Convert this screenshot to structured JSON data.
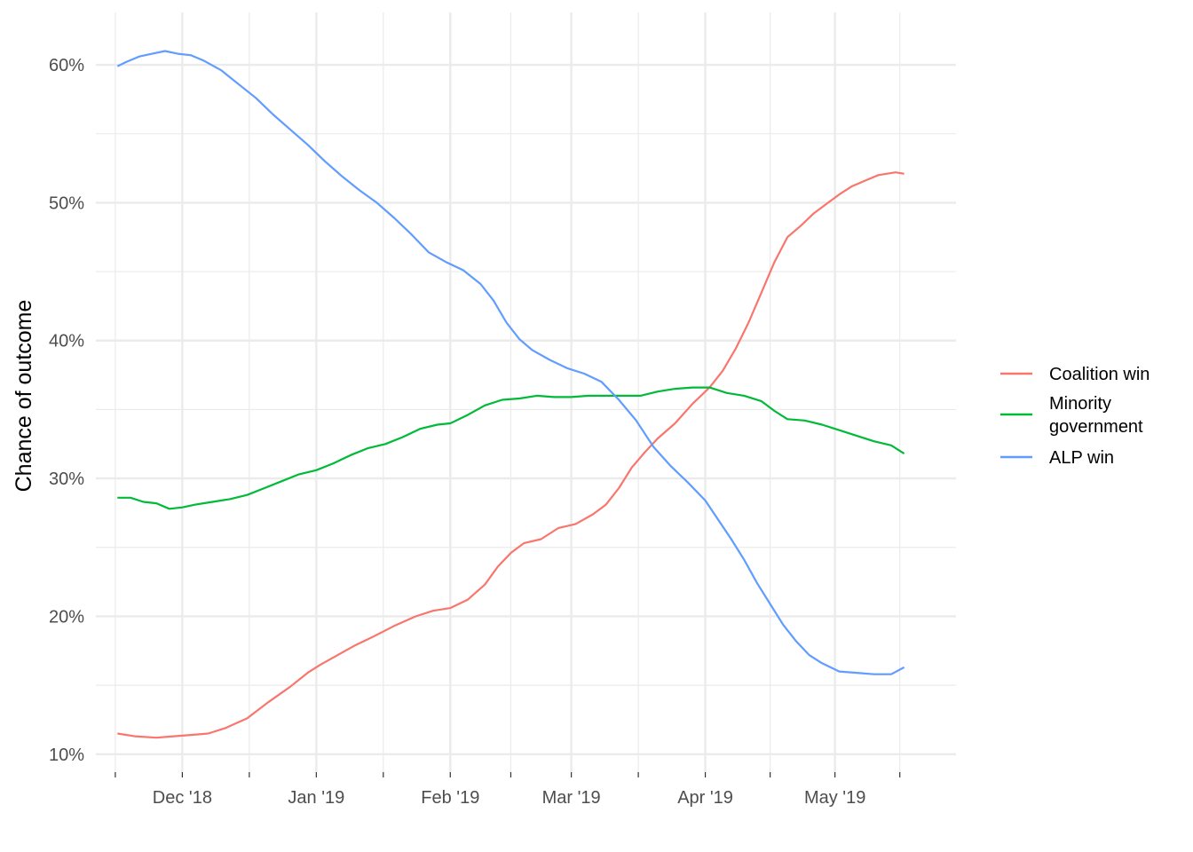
{
  "chart_data": {
    "type": "line",
    "ylabel": "Chance of outcome",
    "xlabel": "",
    "x_ticks": [
      {
        "date": "2018-12-01",
        "label": "Dec '18"
      },
      {
        "date": "2019-01-01",
        "label": "Jan '19"
      },
      {
        "date": "2019-02-01",
        "label": "Feb '19"
      },
      {
        "date": "2019-03-01",
        "label": "Mar '19"
      },
      {
        "date": "2019-04-01",
        "label": "Apr '19"
      },
      {
        "date": "2019-05-01",
        "label": "May '19"
      }
    ],
    "y_ticks": [
      {
        "value": 10,
        "label": "10%"
      },
      {
        "value": 20,
        "label": "20%"
      },
      {
        "value": 30,
        "label": "30%"
      },
      {
        "value": 40,
        "label": "40%"
      },
      {
        "value": 50,
        "label": "50%"
      },
      {
        "value": 60,
        "label": "60%"
      }
    ],
    "xlim": [
      "2018-11-11",
      "2019-05-29"
    ],
    "ylim": [
      8.7,
      63.8
    ],
    "grid": true,
    "legend_position": "right",
    "series": [
      {
        "name": "Coalition win",
        "color": "#F8766D",
        "points": [
          [
            "2018-11-16",
            11.5
          ],
          [
            "2018-11-20",
            11.3
          ],
          [
            "2018-11-25",
            11.2
          ],
          [
            "2018-11-29",
            11.3
          ],
          [
            "2018-12-03",
            11.4
          ],
          [
            "2018-12-07",
            11.5
          ],
          [
            "2018-12-11",
            11.9
          ],
          [
            "2018-12-16",
            12.6
          ],
          [
            "2018-12-21",
            13.8
          ],
          [
            "2018-12-26",
            14.9
          ],
          [
            "2018-12-30",
            15.9
          ],
          [
            "2019-01-02",
            16.5
          ],
          [
            "2019-01-06",
            17.2
          ],
          [
            "2019-01-10",
            17.9
          ],
          [
            "2019-01-14",
            18.5
          ],
          [
            "2019-01-19",
            19.3
          ],
          [
            "2019-01-24",
            20.0
          ],
          [
            "2019-01-28",
            20.4
          ],
          [
            "2019-02-01",
            20.6
          ],
          [
            "2019-02-05",
            21.2
          ],
          [
            "2019-02-09",
            22.3
          ],
          [
            "2019-02-12",
            23.6
          ],
          [
            "2019-02-15",
            24.6
          ],
          [
            "2019-02-18",
            25.3
          ],
          [
            "2019-02-22",
            25.6
          ],
          [
            "2019-02-26",
            26.4
          ],
          [
            "2019-03-02",
            26.7
          ],
          [
            "2019-03-06",
            27.4
          ],
          [
            "2019-03-09",
            28.1
          ],
          [
            "2019-03-12",
            29.3
          ],
          [
            "2019-03-15",
            30.8
          ],
          [
            "2019-03-18",
            31.9
          ],
          [
            "2019-03-21",
            32.9
          ],
          [
            "2019-03-25",
            34.0
          ],
          [
            "2019-03-29",
            35.4
          ],
          [
            "2019-04-02",
            36.6
          ],
          [
            "2019-04-05",
            37.8
          ],
          [
            "2019-04-08",
            39.4
          ],
          [
            "2019-04-11",
            41.3
          ],
          [
            "2019-04-14",
            43.5
          ],
          [
            "2019-04-17",
            45.7
          ],
          [
            "2019-04-20",
            47.5
          ],
          [
            "2019-04-23",
            48.3
          ],
          [
            "2019-04-26",
            49.2
          ],
          [
            "2019-04-29",
            49.9
          ],
          [
            "2019-05-02",
            50.6
          ],
          [
            "2019-05-05",
            51.2
          ],
          [
            "2019-05-08",
            51.6
          ],
          [
            "2019-05-11",
            52.0
          ],
          [
            "2019-05-15",
            52.2
          ],
          [
            "2019-05-17",
            52.1
          ]
        ]
      },
      {
        "name": "Minority government",
        "color": "#00BA38",
        "points": [
          [
            "2018-11-16",
            28.6
          ],
          [
            "2018-11-19",
            28.6
          ],
          [
            "2018-11-22",
            28.3
          ],
          [
            "2018-11-25",
            28.2
          ],
          [
            "2018-11-28",
            27.8
          ],
          [
            "2018-12-01",
            27.9
          ],
          [
            "2018-12-04",
            28.1
          ],
          [
            "2018-12-08",
            28.3
          ],
          [
            "2018-12-12",
            28.5
          ],
          [
            "2018-12-16",
            28.8
          ],
          [
            "2018-12-20",
            29.3
          ],
          [
            "2018-12-24",
            29.8
          ],
          [
            "2018-12-28",
            30.3
          ],
          [
            "2019-01-01",
            30.6
          ],
          [
            "2019-01-05",
            31.1
          ],
          [
            "2019-01-09",
            31.7
          ],
          [
            "2019-01-13",
            32.2
          ],
          [
            "2019-01-17",
            32.5
          ],
          [
            "2019-01-21",
            33.0
          ],
          [
            "2019-01-25",
            33.6
          ],
          [
            "2019-01-29",
            33.9
          ],
          [
            "2019-02-01",
            34.0
          ],
          [
            "2019-02-05",
            34.6
          ],
          [
            "2019-02-09",
            35.3
          ],
          [
            "2019-02-13",
            35.7
          ],
          [
            "2019-02-17",
            35.8
          ],
          [
            "2019-02-21",
            36.0
          ],
          [
            "2019-02-25",
            35.9
          ],
          [
            "2019-03-01",
            35.9
          ],
          [
            "2019-03-05",
            36.0
          ],
          [
            "2019-03-09",
            36.0
          ],
          [
            "2019-03-13",
            36.0
          ],
          [
            "2019-03-17",
            36.0
          ],
          [
            "2019-03-21",
            36.3
          ],
          [
            "2019-03-25",
            36.5
          ],
          [
            "2019-03-29",
            36.6
          ],
          [
            "2019-04-02",
            36.6
          ],
          [
            "2019-04-06",
            36.2
          ],
          [
            "2019-04-10",
            36.0
          ],
          [
            "2019-04-14",
            35.6
          ],
          [
            "2019-04-17",
            34.9
          ],
          [
            "2019-04-20",
            34.3
          ],
          [
            "2019-04-24",
            34.2
          ],
          [
            "2019-04-28",
            33.9
          ],
          [
            "2019-05-02",
            33.5
          ],
          [
            "2019-05-06",
            33.1
          ],
          [
            "2019-05-10",
            32.7
          ],
          [
            "2019-05-14",
            32.4
          ],
          [
            "2019-05-17",
            31.8
          ]
        ]
      },
      {
        "name": "ALP win",
        "color": "#619CFF",
        "points": [
          [
            "2018-11-16",
            59.9
          ],
          [
            "2018-11-18",
            60.2
          ],
          [
            "2018-11-21",
            60.6
          ],
          [
            "2018-11-24",
            60.8
          ],
          [
            "2018-11-27",
            61.0
          ],
          [
            "2018-11-30",
            60.8
          ],
          [
            "2018-12-03",
            60.7
          ],
          [
            "2018-12-06",
            60.3
          ],
          [
            "2018-12-10",
            59.6
          ],
          [
            "2018-12-14",
            58.6
          ],
          [
            "2018-12-18",
            57.6
          ],
          [
            "2018-12-22",
            56.4
          ],
          [
            "2018-12-26",
            55.3
          ],
          [
            "2018-12-30",
            54.2
          ],
          [
            "2019-01-03",
            53.0
          ],
          [
            "2019-01-07",
            51.9
          ],
          [
            "2019-01-11",
            50.9
          ],
          [
            "2019-01-15",
            50.0
          ],
          [
            "2019-01-19",
            48.9
          ],
          [
            "2019-01-23",
            47.7
          ],
          [
            "2019-01-27",
            46.4
          ],
          [
            "2019-01-31",
            45.7
          ],
          [
            "2019-02-04",
            45.1
          ],
          [
            "2019-02-08",
            44.1
          ],
          [
            "2019-02-11",
            42.9
          ],
          [
            "2019-02-14",
            41.3
          ],
          [
            "2019-02-17",
            40.1
          ],
          [
            "2019-02-20",
            39.3
          ],
          [
            "2019-02-24",
            38.6
          ],
          [
            "2019-02-28",
            38.0
          ],
          [
            "2019-03-04",
            37.6
          ],
          [
            "2019-03-08",
            37.0
          ],
          [
            "2019-03-12",
            35.7
          ],
          [
            "2019-03-16",
            34.2
          ],
          [
            "2019-03-20",
            32.3
          ],
          [
            "2019-03-24",
            30.9
          ],
          [
            "2019-03-28",
            29.7
          ],
          [
            "2019-04-01",
            28.4
          ],
          [
            "2019-04-04",
            27.0
          ],
          [
            "2019-04-07",
            25.6
          ],
          [
            "2019-04-10",
            24.1
          ],
          [
            "2019-04-13",
            22.4
          ],
          [
            "2019-04-16",
            20.9
          ],
          [
            "2019-04-19",
            19.4
          ],
          [
            "2019-04-22",
            18.2
          ],
          [
            "2019-04-25",
            17.2
          ],
          [
            "2019-04-28",
            16.6
          ],
          [
            "2019-05-02",
            16.0
          ],
          [
            "2019-05-06",
            15.9
          ],
          [
            "2019-05-10",
            15.8
          ],
          [
            "2019-05-14",
            15.8
          ],
          [
            "2019-05-17",
            16.3
          ]
        ]
      }
    ],
    "legend": {
      "items": [
        {
          "lines": [
            "Coalition win"
          ],
          "color": "#F8766D"
        },
        {
          "lines": [
            "Minority",
            "government"
          ],
          "color": "#00BA38"
        },
        {
          "lines": [
            "ALP win"
          ],
          "color": "#619CFF"
        }
      ]
    }
  }
}
